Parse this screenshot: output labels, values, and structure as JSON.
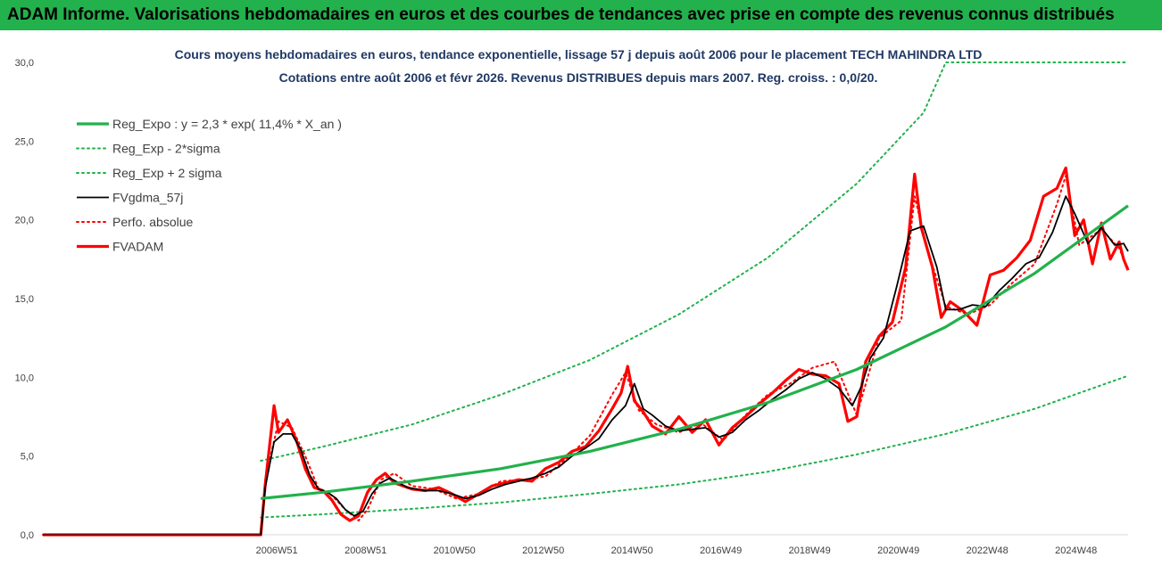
{
  "header": {
    "title": "ADAM Informe. Valorisations hebdomadaires en euros et des courbes de tendances avec prise en compte des revenus connus distribués"
  },
  "colors": {
    "banner": "#22b14c",
    "reg_expo": "#22b14c",
    "bands": "#22b14c",
    "fvgdma": "#000000",
    "perfo": "#ff0000",
    "fvadam": "#ff0000",
    "title": "#1f3864"
  },
  "chart_data": {
    "type": "line",
    "title": "Cours moyens hebdomadaires en euros, tendance exponentielle, lissage 57 j depuis août 2006 pour le placement TECH MAHINDRA LTD",
    "subtitle": "Cotations entre août 2006 et févr 2026. Revenus DISTRIBUES depuis mars 2007. Reg. croiss. : 0,0/20.",
    "xlabel": "",
    "ylabel": "",
    "ylim": [
      0,
      30
    ],
    "yticks": [
      "0,0",
      "5,0",
      "10,0",
      "15,0",
      "20,0",
      "25,0",
      "30,0"
    ],
    "xticks": [
      "2006W51",
      "2008W51",
      "2010W50",
      "2012W50",
      "2014W50",
      "2016W49",
      "2018W49",
      "2020W49",
      "2022W48",
      "2024W48"
    ],
    "grid": false,
    "legend_position": "top-left",
    "series": [
      {
        "name": "Reg_Expo : y = 2,3 * exp( 11,4% *  X_an )",
        "style": "solid-thick",
        "color": "#22b14c",
        "x": [
          2006.6,
          2008.0,
          2010.0,
          2012.0,
          2014.0,
          2016.0,
          2018.0,
          2020.0,
          2022.0,
          2024.0,
          2026.1
        ],
        "values": [
          2.3,
          2.7,
          3.4,
          4.2,
          5.3,
          6.7,
          8.4,
          10.5,
          13.2,
          16.6,
          20.9
        ]
      },
      {
        "name": "Reg_Exp - 2*sigma",
        "style": "dotted",
        "color": "#22b14c",
        "x": [
          2006.6,
          2008.0,
          2010.0,
          2012.0,
          2014.0,
          2016.0,
          2018.0,
          2020.0,
          2022.0,
          2024.0,
          2026.1
        ],
        "values": [
          1.1,
          1.3,
          1.65,
          2.05,
          2.6,
          3.2,
          4.0,
          5.1,
          6.4,
          8.0,
          10.1
        ]
      },
      {
        "name": "Reg_Exp + 2 sigma",
        "style": "dotted",
        "color": "#22b14c",
        "x": [
          2006.6,
          2008.0,
          2010.0,
          2012.0,
          2014.0,
          2016.0,
          2018.0,
          2020.0,
          2021.5,
          2022.0,
          2024.0,
          2026.1
        ],
        "values": [
          4.7,
          5.6,
          7.0,
          8.9,
          11.1,
          14.0,
          17.6,
          22.3,
          26.8,
          30.0,
          30.0,
          30.0
        ]
      },
      {
        "name": "FVgdma_57j",
        "style": "solid",
        "color": "#000000",
        "x": [
          2006.6,
          2006.7,
          2006.9,
          2007.1,
          2007.3,
          2007.5,
          2007.7,
          2007.9,
          2008.1,
          2008.3,
          2008.5,
          2008.7,
          2008.9,
          2009.1,
          2009.3,
          2009.5,
          2009.7,
          2009.9,
          2010.1,
          2010.3,
          2010.6,
          2010.9,
          2011.2,
          2011.5,
          2011.8,
          2012.1,
          2012.4,
          2012.7,
          2013.0,
          2013.3,
          2013.6,
          2013.9,
          2014.2,
          2014.5,
          2014.8,
          2015.0,
          2015.2,
          2015.4,
          2015.7,
          2016.0,
          2016.3,
          2016.6,
          2016.9,
          2017.2,
          2017.5,
          2017.8,
          2018.1,
          2018.4,
          2018.7,
          2019.0,
          2019.3,
          2019.6,
          2019.9,
          2020.1,
          2020.3,
          2020.6,
          2020.9,
          2021.2,
          2021.5,
          2021.8,
          2022.0,
          2022.3,
          2022.6,
          2022.9,
          2023.2,
          2023.5,
          2023.8,
          2024.1,
          2024.4,
          2024.7,
          2024.9,
          2025.2,
          2025.5,
          2025.8,
          2026.0,
          2026.1
        ],
        "values": [
          0.0,
          3.0,
          5.9,
          6.4,
          6.4,
          5.4,
          3.8,
          2.9,
          2.7,
          2.3,
          1.6,
          1.2,
          1.5,
          2.6,
          3.3,
          3.6,
          3.3,
          3.0,
          2.9,
          2.8,
          2.8,
          2.6,
          2.3,
          2.5,
          2.9,
          3.2,
          3.4,
          3.6,
          3.9,
          4.3,
          5.0,
          5.5,
          6.1,
          7.3,
          8.2,
          9.6,
          8.0,
          7.6,
          6.9,
          6.6,
          6.7,
          6.8,
          6.2,
          6.5,
          7.3,
          7.9,
          8.6,
          9.2,
          9.9,
          10.3,
          9.9,
          9.3,
          8.2,
          9.4,
          11.2,
          12.5,
          15.8,
          19.3,
          19.6,
          17.0,
          14.3,
          14.3,
          14.6,
          14.5,
          15.5,
          16.3,
          17.2,
          17.6,
          19.2,
          21.5,
          20.4,
          18.5,
          19.5,
          18.4,
          18.5,
          18.0
        ]
      },
      {
        "name": "Perfo. absolue",
        "style": "dotted",
        "color": "#ff0000",
        "x": [
          2006.6,
          2006.7,
          2007.0,
          2007.3,
          2007.6,
          2007.9,
          2008.2,
          2008.5,
          2008.8,
          2009.0,
          2009.3,
          2009.6,
          2010.0,
          2010.5,
          2011.0,
          2011.5,
          2012.0,
          2012.5,
          2013.0,
          2013.5,
          2014.0,
          2014.5,
          2014.8,
          2015.1,
          2015.5,
          2016.0,
          2016.5,
          2017.0,
          2017.5,
          2018.0,
          2018.5,
          2019.0,
          2019.5,
          2020.0,
          2020.5,
          2021.0,
          2021.3,
          2021.6,
          2022.0,
          2022.5,
          2023.0,
          2023.5,
          2024.0,
          2024.5,
          2024.7,
          2025.0,
          2025.5,
          2025.9,
          2026.1
        ],
        "values": [
          0.0,
          3.5,
          7.2,
          6.8,
          5.0,
          2.9,
          2.5,
          1.6,
          0.9,
          1.6,
          3.5,
          3.9,
          3.1,
          2.9,
          2.3,
          2.6,
          3.4,
          3.5,
          3.7,
          4.9,
          6.3,
          8.9,
          10.3,
          7.9,
          7.0,
          6.5,
          7.1,
          6.0,
          7.6,
          8.9,
          9.6,
          10.6,
          11.0,
          7.6,
          12.5,
          13.6,
          21.5,
          18.0,
          14.5,
          14.0,
          14.6,
          16.0,
          17.2,
          21.0,
          22.8,
          18.4,
          19.4,
          18.2,
          16.9
        ]
      },
      {
        "name": "FVADAM",
        "style": "solid-thick",
        "color": "#ff0000",
        "x": [
          2006.6,
          2006.7,
          2006.9,
          2007.0,
          2007.2,
          2007.4,
          2007.6,
          2007.8,
          2008.0,
          2008.2,
          2008.4,
          2008.6,
          2008.8,
          2009.0,
          2009.2,
          2009.4,
          2009.6,
          2009.8,
          2010.0,
          2010.3,
          2010.6,
          2010.9,
          2011.2,
          2011.5,
          2011.8,
          2012.1,
          2012.4,
          2012.7,
          2013.0,
          2013.3,
          2013.6,
          2013.9,
          2014.2,
          2014.5,
          2014.7,
          2014.85,
          2015.0,
          2015.2,
          2015.4,
          2015.7,
          2016.0,
          2016.3,
          2016.6,
          2016.9,
          2017.2,
          2017.5,
          2017.8,
          2018.1,
          2018.4,
          2018.7,
          2019.0,
          2019.3,
          2019.6,
          2019.8,
          2020.0,
          2020.2,
          2020.5,
          2020.8,
          2021.1,
          2021.3,
          2021.45,
          2021.7,
          2021.9,
          2022.1,
          2022.4,
          2022.7,
          2023.0,
          2023.3,
          2023.6,
          2023.9,
          2024.2,
          2024.5,
          2024.7,
          2024.9,
          2025.1,
          2025.3,
          2025.5,
          2025.7,
          2025.9,
          2026.0,
          2026.1
        ],
        "values": [
          0.0,
          3.2,
          8.2,
          6.5,
          7.3,
          6.0,
          4.2,
          3.0,
          2.8,
          2.2,
          1.3,
          0.9,
          1.2,
          2.7,
          3.5,
          3.9,
          3.3,
          3.1,
          2.9,
          2.8,
          3.0,
          2.6,
          2.1,
          2.6,
          3.1,
          3.3,
          3.5,
          3.4,
          4.2,
          4.6,
          5.3,
          5.6,
          6.6,
          8.0,
          9.0,
          10.7,
          8.5,
          7.8,
          6.9,
          6.4,
          7.5,
          6.5,
          7.3,
          5.7,
          6.8,
          7.5,
          8.3,
          9.0,
          9.8,
          10.5,
          10.2,
          10.1,
          9.6,
          7.2,
          7.5,
          11.0,
          12.6,
          13.5,
          17.0,
          22.9,
          19.5,
          17.0,
          13.8,
          14.8,
          14.2,
          13.3,
          16.5,
          16.8,
          17.6,
          18.7,
          21.5,
          22.0,
          23.3,
          19.0,
          20.0,
          17.2,
          19.8,
          17.5,
          18.6,
          17.5,
          16.8
        ]
      }
    ]
  }
}
